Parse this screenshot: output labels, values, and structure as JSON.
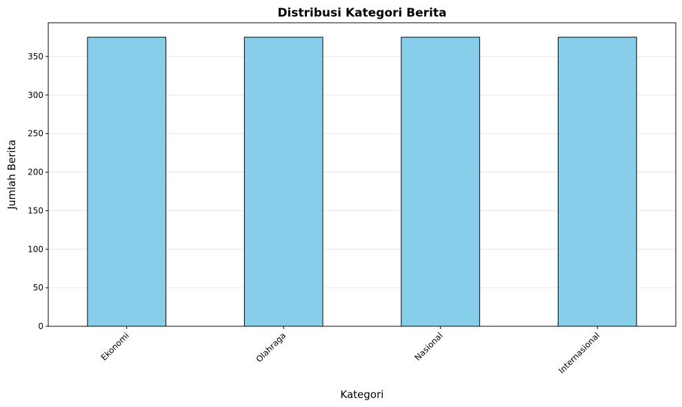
{
  "chart_data": {
    "type": "bar",
    "title": "Distribusi Kategori Berita",
    "x_label": "Kategori",
    "y_label": "Jumlah Berita",
    "categories": [
      "Ekonomi",
      "Olahraga",
      "Nasional",
      "Internasional"
    ],
    "values": [
      375,
      375,
      375,
      375
    ],
    "color": "#87ceeb",
    "edge_color": "#000000",
    "ylim": [
      0,
      393.75
    ],
    "yticks": [
      0,
      50,
      100,
      150,
      200,
      250,
      300,
      350
    ],
    "grid": true
  }
}
